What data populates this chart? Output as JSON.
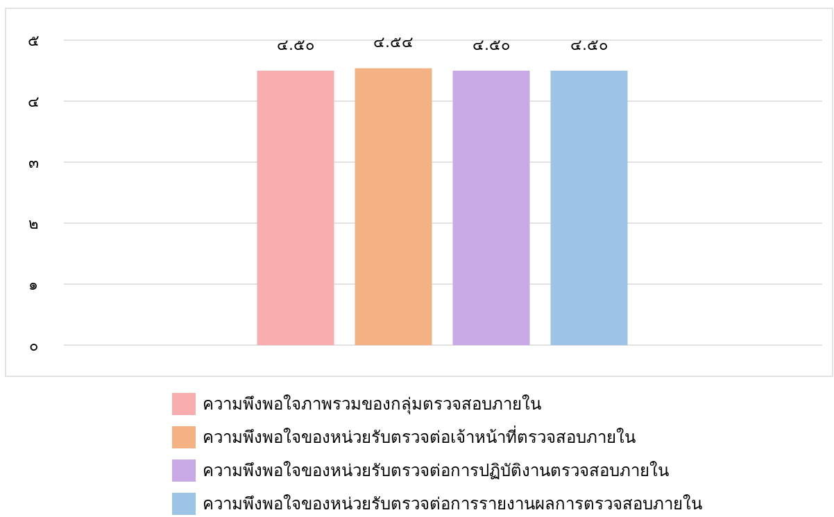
{
  "chart_data": {
    "type": "bar",
    "categories": [
      null
    ],
    "series": [
      {
        "name": "ความพึงพอใจภาพรวมของกลุ่มตรวจสอบภายใน",
        "color": "#f8aeae",
        "values": [
          4.5
        ],
        "value_labels": [
          "๔.๕๐"
        ]
      },
      {
        "name": "ความพึงพอใจของหน่วยรับตรวจต่อเจ้าหน้าที่ตรวจสอบภายใน",
        "color": "#f4b183",
        "values": [
          4.54
        ],
        "value_labels": [
          "๔.๕๔"
        ]
      },
      {
        "name": "ความพึงพอใจของหน่วยรับตรวจต่อการปฏิบัติงานตรวจสอบภายใน",
        "color": "#c9a8e6",
        "values": [
          4.5
        ],
        "value_labels": [
          "๔.๕๐"
        ]
      },
      {
        "name": "ความพึงพอใจของหน่วยรับตรวจต่อการรายงานผลการตรวจสอบภายใน",
        "color": "#9dc3e6",
        "values": [
          4.5
        ],
        "value_labels": [
          "๔.๕๐"
        ]
      }
    ],
    "ylim": [
      0,
      5.5
    ],
    "yticks": [
      {
        "value": 0,
        "label": "๐"
      },
      {
        "value": 1,
        "label": "๑"
      },
      {
        "value": 2,
        "label": "๒"
      },
      {
        "value": 3,
        "label": "๓"
      },
      {
        "value": 4,
        "label": "๔"
      },
      {
        "value": 5,
        "label": "๕"
      }
    ],
    "grid": "y",
    "legend": "bottom"
  }
}
